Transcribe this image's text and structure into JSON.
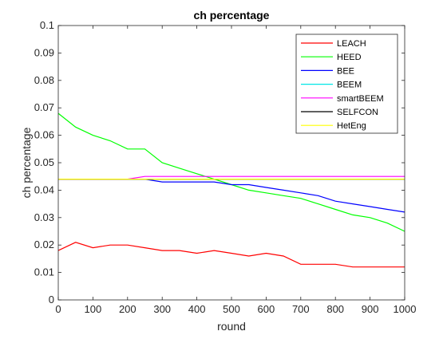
{
  "chart_data": {
    "type": "line",
    "title": "ch percentage",
    "xlabel": "round",
    "ylabel": "ch percentage",
    "xlim": [
      0,
      1000
    ],
    "ylim": [
      0,
      0.1
    ],
    "xticks": [
      0,
      100,
      200,
      300,
      400,
      500,
      600,
      700,
      800,
      900,
      1000
    ],
    "xtick_labels": [
      "0",
      "100",
      "200",
      "300",
      "400",
      "500",
      "600",
      "700",
      "800",
      "900",
      "1000"
    ],
    "yticks": [
      0,
      0.01,
      0.02,
      0.03,
      0.04,
      0.05,
      0.06,
      0.07,
      0.08,
      0.09,
      0.1
    ],
    "ytick_labels": [
      "0",
      "0.01",
      "0.02",
      "0.03",
      "0.04",
      "0.05",
      "0.06",
      "0.07",
      "0.08",
      "0.09",
      "0.1"
    ],
    "grid": false,
    "legend_position": "top-right",
    "x": [
      0,
      50,
      100,
      150,
      200,
      250,
      300,
      350,
      400,
      450,
      500,
      550,
      600,
      650,
      700,
      750,
      800,
      850,
      900,
      950,
      1000
    ],
    "series": [
      {
        "name": "LEACH",
        "color": "#ff0000",
        "values": [
          0.018,
          0.021,
          0.019,
          0.02,
          0.02,
          0.019,
          0.018,
          0.018,
          0.017,
          0.018,
          0.017,
          0.016,
          0.017,
          0.016,
          0.013,
          0.013,
          0.013,
          0.012,
          0.012,
          0.012,
          0.012
        ]
      },
      {
        "name": "HEED",
        "color": "#00ff00",
        "values": [
          0.068,
          0.063,
          0.06,
          0.058,
          0.055,
          0.055,
          0.05,
          0.048,
          0.046,
          0.044,
          0.042,
          0.04,
          0.039,
          0.038,
          0.037,
          0.035,
          0.033,
          0.031,
          0.03,
          0.028,
          0.025
        ]
      },
      {
        "name": "BEE",
        "color": "#0000ff",
        "values": [
          0.044,
          0.044,
          0.044,
          0.044,
          0.044,
          0.044,
          0.043,
          0.043,
          0.043,
          0.043,
          0.042,
          0.042,
          0.041,
          0.04,
          0.039,
          0.038,
          0.036,
          0.035,
          0.034,
          0.033,
          0.032
        ]
      },
      {
        "name": "BEEM",
        "color": "#00e6e6",
        "values": [
          0.044,
          0.044,
          0.044,
          0.044,
          0.044,
          0.044,
          0.044,
          0.044,
          0.044,
          0.044,
          0.044,
          0.044,
          0.044,
          0.044,
          0.044,
          0.044,
          0.044,
          0.044,
          0.044,
          0.044,
          0.044
        ]
      },
      {
        "name": "smartBEEM",
        "color": "#ff00ff",
        "values": [
          0.044,
          0.044,
          0.044,
          0.044,
          0.044,
          0.045,
          0.045,
          0.045,
          0.045,
          0.045,
          0.045,
          0.045,
          0.045,
          0.045,
          0.045,
          0.045,
          0.045,
          0.045,
          0.045,
          0.045,
          0.045
        ]
      },
      {
        "name": "SELFCON",
        "color": "#000000",
        "values": [
          0.044,
          0.044,
          0.044,
          0.044,
          0.044,
          0.044,
          0.044,
          0.044,
          0.044,
          0.044,
          0.044,
          0.044,
          0.044,
          0.044,
          0.044,
          0.044,
          0.044,
          0.044,
          0.044,
          0.044,
          0.044
        ]
      },
      {
        "name": "HetEng",
        "color": "#ffff00",
        "values": [
          0.044,
          0.044,
          0.044,
          0.044,
          0.044,
          0.044,
          0.044,
          0.044,
          0.044,
          0.044,
          0.044,
          0.044,
          0.044,
          0.044,
          0.044,
          0.044,
          0.044,
          0.044,
          0.044,
          0.044,
          0.044
        ]
      }
    ]
  }
}
